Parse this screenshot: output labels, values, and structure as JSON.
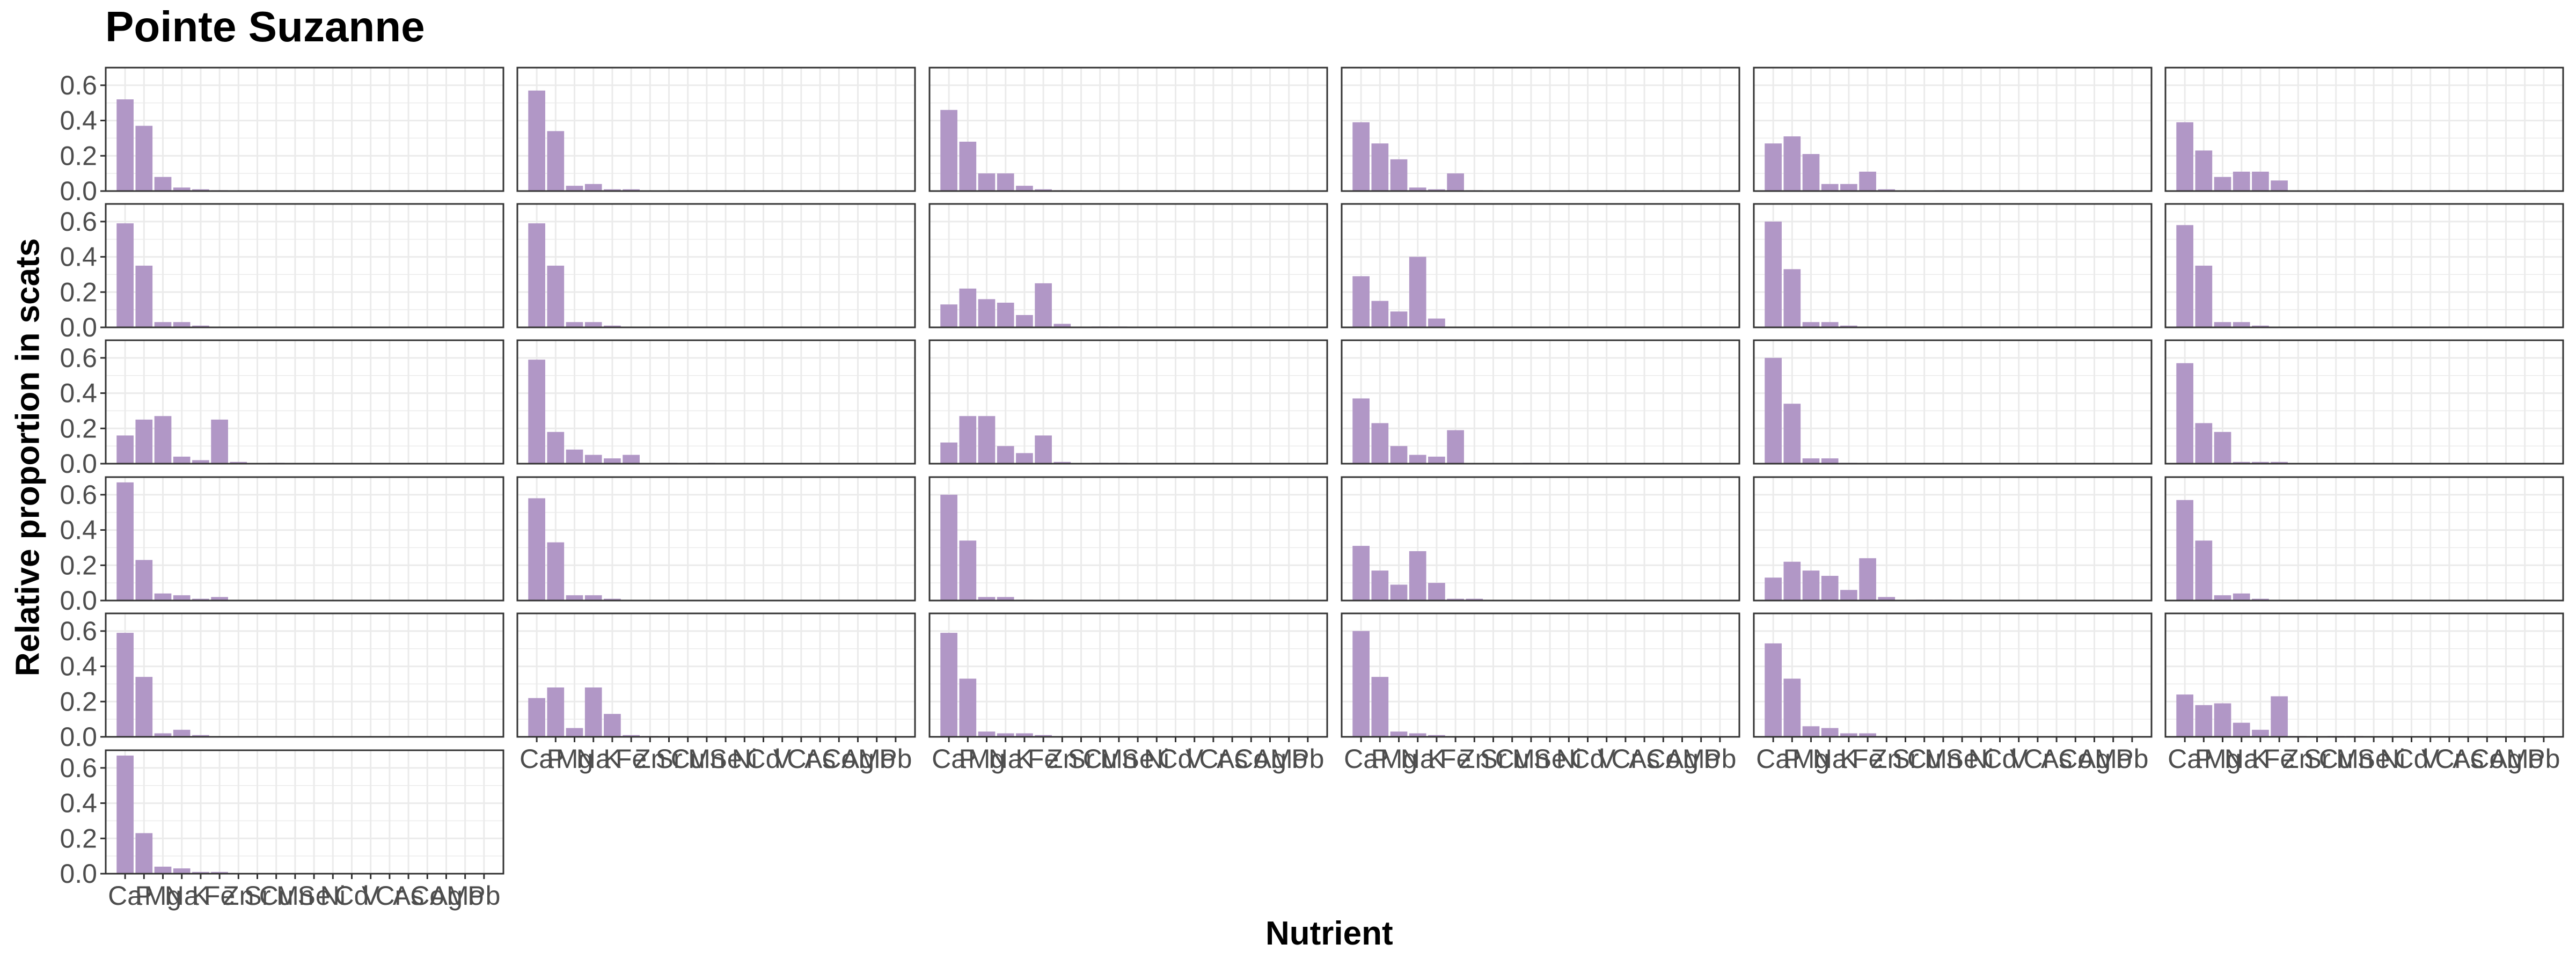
{
  "chart_data": {
    "type": "bar",
    "title": "Pointe Suzanne",
    "xlabel": "Nutrient",
    "ylabel": "Relative proportion in scats",
    "ylim": [
      0,
      0.7
    ],
    "yticks": [
      "0.0",
      "0.2",
      "0.4",
      "0.6"
    ],
    "grid": true,
    "bar_color": "#b197c6",
    "panel_border_color": "#333333",
    "grid_color": "#ebebeb",
    "categories": [
      "Ca",
      "P",
      "Mg",
      "Na",
      "K",
      "Fe",
      "Zn",
      "Sr",
      "Cu",
      "Mn",
      "Se",
      "Ni",
      "Cd",
      "V",
      "Cr",
      "As",
      "Co",
      "Ag",
      "Mo",
      "Pb"
    ],
    "panels": [
      {
        "values": [
          0.52,
          0.37,
          0.08,
          0.02,
          0.01,
          0.005,
          0,
          0,
          0,
          0,
          0,
          0,
          0,
          0,
          0,
          0,
          0,
          0,
          0,
          0
        ]
      },
      {
        "values": [
          0.57,
          0.34,
          0.03,
          0.04,
          0.01,
          0.01,
          0,
          0,
          0,
          0,
          0,
          0,
          0,
          0,
          0,
          0,
          0,
          0,
          0,
          0
        ]
      },
      {
        "values": [
          0.46,
          0.28,
          0.1,
          0.1,
          0.03,
          0.01,
          0.005,
          0,
          0,
          0,
          0,
          0,
          0,
          0,
          0,
          0,
          0,
          0,
          0,
          0
        ]
      },
      {
        "values": [
          0.39,
          0.27,
          0.18,
          0.02,
          0.01,
          0.1,
          0.005,
          0,
          0,
          0,
          0,
          0,
          0,
          0,
          0,
          0,
          0,
          0,
          0,
          0
        ]
      },
      {
        "values": [
          0.27,
          0.31,
          0.21,
          0.04,
          0.04,
          0.11,
          0.01,
          0,
          0,
          0.005,
          0,
          0,
          0,
          0,
          0,
          0,
          0,
          0,
          0,
          0
        ]
      },
      {
        "values": [
          0.39,
          0.23,
          0.08,
          0.11,
          0.11,
          0.06,
          0,
          0,
          0,
          0,
          0.005,
          0,
          0,
          0,
          0,
          0,
          0,
          0,
          0,
          0
        ]
      },
      {
        "values": [
          0.59,
          0.35,
          0.03,
          0.03,
          0.01,
          0,
          0,
          0,
          0,
          0,
          0,
          0,
          0,
          0,
          0,
          0,
          0,
          0,
          0,
          0
        ]
      },
      {
        "values": [
          0.59,
          0.35,
          0.03,
          0.03,
          0.01,
          0,
          0,
          0,
          0,
          0,
          0,
          0,
          0,
          0,
          0,
          0,
          0,
          0,
          0,
          0
        ]
      },
      {
        "values": [
          0.13,
          0.22,
          0.16,
          0.14,
          0.07,
          0.25,
          0.02,
          0,
          0.005,
          0.005,
          0,
          0,
          0,
          0,
          0,
          0,
          0,
          0,
          0,
          0
        ]
      },
      {
        "values": [
          0.29,
          0.15,
          0.09,
          0.4,
          0.05,
          0,
          0,
          0,
          0,
          0,
          0,
          0,
          0,
          0,
          0,
          0,
          0,
          0,
          0,
          0
        ]
      },
      {
        "values": [
          0.6,
          0.33,
          0.03,
          0.03,
          0.01,
          0,
          0,
          0,
          0,
          0,
          0,
          0,
          0,
          0,
          0,
          0,
          0,
          0,
          0,
          0
        ]
      },
      {
        "values": [
          0.58,
          0.35,
          0.03,
          0.03,
          0.01,
          0,
          0,
          0,
          0,
          0,
          0,
          0,
          0,
          0,
          0,
          0,
          0,
          0,
          0,
          0
        ]
      },
      {
        "values": [
          0.16,
          0.25,
          0.27,
          0.04,
          0.02,
          0.25,
          0.01,
          0,
          0.005,
          0,
          0,
          0,
          0,
          0,
          0,
          0,
          0,
          0,
          0,
          0
        ]
      },
      {
        "values": [
          0.59,
          0.18,
          0.08,
          0.05,
          0.03,
          0.05,
          0,
          0.005,
          0,
          0.005,
          0,
          0,
          0,
          0,
          0,
          0,
          0,
          0,
          0,
          0
        ]
      },
      {
        "values": [
          0.12,
          0.27,
          0.27,
          0.1,
          0.06,
          0.16,
          0.01,
          0,
          0.005,
          0.005,
          0,
          0,
          0,
          0,
          0,
          0,
          0,
          0,
          0,
          0
        ]
      },
      {
        "values": [
          0.37,
          0.23,
          0.1,
          0.05,
          0.04,
          0.19,
          0,
          0,
          0,
          0.005,
          0,
          0,
          0,
          0,
          0,
          0,
          0,
          0,
          0,
          0
        ]
      },
      {
        "values": [
          0.6,
          0.34,
          0.03,
          0.03,
          0.005,
          0,
          0,
          0,
          0,
          0,
          0,
          0,
          0,
          0,
          0,
          0,
          0,
          0,
          0,
          0
        ]
      },
      {
        "values": [
          0.57,
          0.23,
          0.18,
          0.01,
          0.01,
          0.01,
          0,
          0,
          0,
          0,
          0,
          0,
          0,
          0,
          0,
          0,
          0,
          0,
          0,
          0
        ]
      },
      {
        "values": [
          0.67,
          0.23,
          0.04,
          0.03,
          0.01,
          0.02,
          0,
          0,
          0,
          0,
          0,
          0,
          0,
          0,
          0,
          0,
          0,
          0,
          0,
          0
        ]
      },
      {
        "values": [
          0.58,
          0.33,
          0.03,
          0.03,
          0.01,
          0,
          0,
          0,
          0,
          0,
          0,
          0,
          0,
          0,
          0,
          0,
          0,
          0,
          0,
          0
        ]
      },
      {
        "values": [
          0.6,
          0.34,
          0.02,
          0.02,
          0.005,
          0,
          0,
          0,
          0,
          0,
          0,
          0,
          0,
          0,
          0,
          0,
          0,
          0,
          0,
          0
        ]
      },
      {
        "values": [
          0.31,
          0.17,
          0.09,
          0.28,
          0.1,
          0.01,
          0.01,
          0,
          0,
          0,
          0,
          0,
          0,
          0,
          0,
          0,
          0,
          0,
          0,
          0
        ]
      },
      {
        "values": [
          0.13,
          0.22,
          0.17,
          0.14,
          0.06,
          0.24,
          0.02,
          0,
          0.005,
          0.005,
          0,
          0,
          0,
          0,
          0,
          0,
          0,
          0,
          0,
          0
        ]
      },
      {
        "values": [
          0.57,
          0.34,
          0.03,
          0.04,
          0.01,
          0,
          0,
          0,
          0,
          0,
          0,
          0,
          0,
          0,
          0,
          0,
          0,
          0,
          0,
          0
        ]
      },
      {
        "values": [
          0.59,
          0.34,
          0.02,
          0.04,
          0.01,
          0,
          0,
          0,
          0,
          0,
          0,
          0,
          0,
          0,
          0,
          0,
          0,
          0,
          0,
          0
        ]
      },
      {
        "values": [
          0.22,
          0.28,
          0.05,
          0.28,
          0.13,
          0.01,
          0.005,
          0,
          0,
          0,
          0,
          0,
          0,
          0,
          0,
          0,
          0,
          0,
          0,
          0
        ]
      },
      {
        "values": [
          0.59,
          0.33,
          0.03,
          0.02,
          0.02,
          0.01,
          0,
          0,
          0,
          0,
          0,
          0,
          0,
          0,
          0,
          0,
          0,
          0,
          0,
          0
        ]
      },
      {
        "values": [
          0.6,
          0.34,
          0.03,
          0.02,
          0.01,
          0,
          0,
          0,
          0,
          0,
          0,
          0,
          0,
          0,
          0,
          0,
          0,
          0,
          0,
          0
        ]
      },
      {
        "values": [
          0.53,
          0.33,
          0.06,
          0.05,
          0.02,
          0.02,
          0,
          0,
          0,
          0,
          0,
          0,
          0,
          0,
          0,
          0,
          0,
          0,
          0,
          0
        ]
      },
      {
        "values": [
          0.24,
          0.18,
          0.19,
          0.08,
          0.04,
          0.23,
          0.005,
          0,
          0.005,
          0.005,
          0,
          0,
          0,
          0,
          0,
          0,
          0,
          0,
          0,
          0
        ]
      },
      {
        "values": [
          0.67,
          0.23,
          0.04,
          0.03,
          0.01,
          0.01,
          0,
          0,
          0,
          0,
          0,
          0,
          0,
          0,
          0,
          0,
          0,
          0,
          0,
          0
        ]
      }
    ]
  }
}
